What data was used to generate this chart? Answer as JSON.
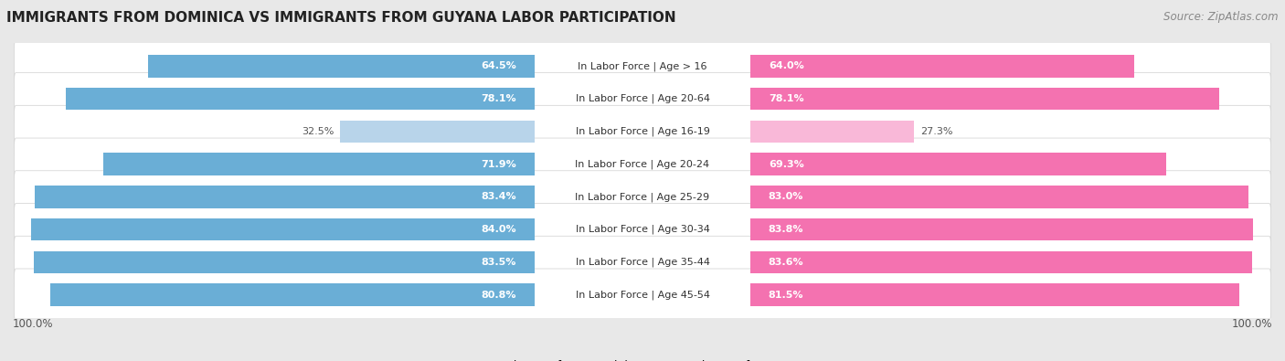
{
  "title": "IMMIGRANTS FROM DOMINICA VS IMMIGRANTS FROM GUYANA LABOR PARTICIPATION",
  "source": "Source: ZipAtlas.com",
  "categories": [
    "In Labor Force | Age > 16",
    "In Labor Force | Age 20-64",
    "In Labor Force | Age 16-19",
    "In Labor Force | Age 20-24",
    "In Labor Force | Age 25-29",
    "In Labor Force | Age 30-34",
    "In Labor Force | Age 35-44",
    "In Labor Force | Age 45-54"
  ],
  "dominica_values": [
    64.5,
    78.1,
    32.5,
    71.9,
    83.4,
    84.0,
    83.5,
    80.8
  ],
  "guyana_values": [
    64.0,
    78.1,
    27.3,
    69.3,
    83.0,
    83.8,
    83.6,
    81.5
  ],
  "dominica_color": "#6aaed6",
  "dominica_light_color": "#b8d4ea",
  "guyana_color": "#f472b0",
  "guyana_light_color": "#f9b8d8",
  "background_color": "#e8e8e8",
  "row_bg_color": "#f4f4f4",
  "row_border_color": "#d0d0d0",
  "max_value": 100.0,
  "bar_height": 0.68,
  "label_threshold": 50,
  "legend_dominica": "Immigrants from Dominica",
  "legend_guyana": "Immigrants from Guyana",
  "value_label_color_inside": "#ffffff",
  "value_label_color_outside": "#555555",
  "center_label_color": "#333333",
  "bottom_label": "100.0%",
  "title_fontsize": 11,
  "source_fontsize": 8.5,
  "bar_label_fontsize": 8,
  "cat_label_fontsize": 8,
  "legend_fontsize": 9
}
